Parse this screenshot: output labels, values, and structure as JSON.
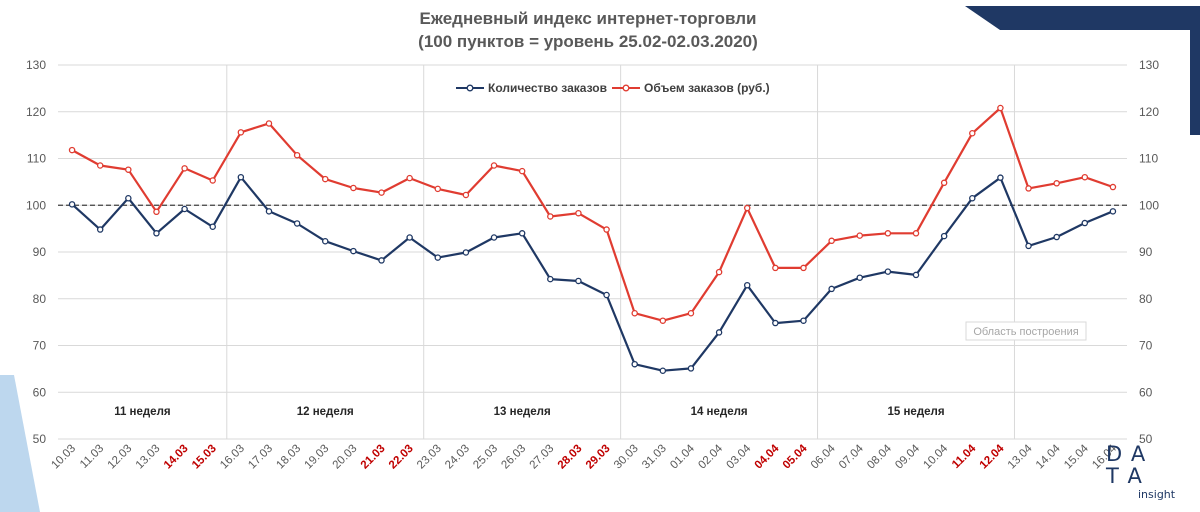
{
  "chart_data": {
    "type": "line",
    "title": "Ежедневный индекс интернет-торговли",
    "subtitle": "(100 пунктов = уровень 25.02-02.03.2020)",
    "ylim": [
      50,
      130
    ],
    "yticks": [
      50,
      60,
      70,
      80,
      90,
      100,
      110,
      120,
      130
    ],
    "reference_line": 100,
    "legend_position": "top-center",
    "categories": [
      "10.03",
      "11.03",
      "12.03",
      "13.03",
      "14.03",
      "15.03",
      "16.03",
      "17.03",
      "18.03",
      "19.03",
      "20.03",
      "21.03",
      "22.03",
      "23.03",
      "24.03",
      "25.03",
      "26.03",
      "27.03",
      "28.03",
      "29.03",
      "30.03",
      "31.03",
      "01.04",
      "02.04",
      "03.04",
      "04.04",
      "05.04",
      "06.04",
      "07.04",
      "08.04",
      "09.04",
      "10.04",
      "11.04",
      "12.04",
      "13.04",
      "14.04",
      "15.04",
      "16.04"
    ],
    "highlighted_categories": [
      "14.03",
      "15.03",
      "21.03",
      "22.03",
      "28.03",
      "29.03",
      "04.04",
      "05.04",
      "11.04",
      "12.04"
    ],
    "series": [
      {
        "name": "Количество заказов",
        "color": "#1f3864",
        "values": [
          100.2,
          94.8,
          101.5,
          94.0,
          99.2,
          95.4,
          106.0,
          98.7,
          96.1,
          92.3,
          90.2,
          88.2,
          93.1,
          88.8,
          89.9,
          93.1,
          94.0,
          84.2,
          83.8,
          80.8,
          66.0,
          64.6,
          65.1,
          72.8,
          82.9,
          74.8,
          75.3,
          82.1,
          84.5,
          85.8,
          85.1,
          93.4,
          101.5,
          105.9,
          91.3,
          93.2,
          96.2,
          98.7
        ]
      },
      {
        "name": "Объем заказов (руб.)",
        "color": "#e03c31",
        "values": [
          111.8,
          108.5,
          107.6,
          98.6,
          107.9,
          105.3,
          115.6,
          117.5,
          110.7,
          105.6,
          103.7,
          102.7,
          105.8,
          103.5,
          102.2,
          108.5,
          107.3,
          97.6,
          98.3,
          94.8,
          76.9,
          75.3,
          76.9,
          85.7,
          99.4,
          86.6,
          86.6,
          92.4,
          93.5,
          94.0,
          94.0,
          104.8,
          115.4,
          120.8,
          103.6,
          104.7,
          106.0,
          103.9
        ]
      }
    ],
    "week_groups": [
      {
        "label": "11 неделя",
        "start": 0,
        "end": 5
      },
      {
        "label": "12 неделя",
        "start": 6,
        "end": 12
      },
      {
        "label": "13 неделя",
        "start": 13,
        "end": 19
      },
      {
        "label": "14 неделя",
        "start": 20,
        "end": 26
      },
      {
        "label": "15 неделя",
        "start": 27,
        "end": 33
      }
    ],
    "grid": true
  },
  "plot_area_label": "Область построения",
  "logo": {
    "line1": "D A",
    "line2": "T A",
    "sub": "insight"
  },
  "colors": {
    "navy_accent": "#1f3864",
    "light_accent": "#bdd7ee"
  }
}
